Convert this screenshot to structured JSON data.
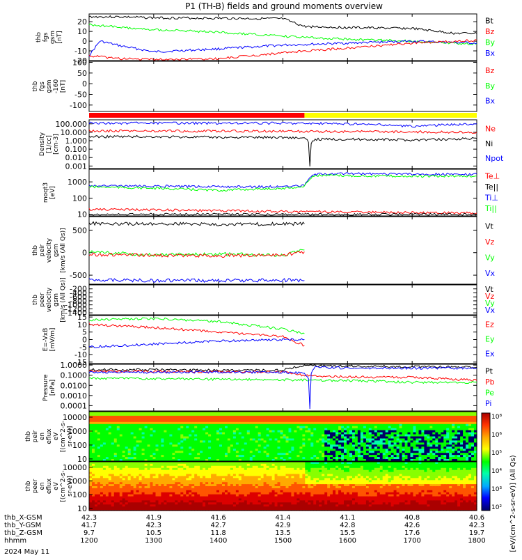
{
  "title": "P1 (TH-B) fields and ground moments overview",
  "date_label": "2024 May 11",
  "colors": {
    "black": "#000000",
    "red": "#ff0000",
    "green": "#00ff00",
    "blue": "#0000ff",
    "yellow": "#ffff00",
    "bar_red": "#ff0000"
  },
  "time_axis": {
    "start_hhmm": "1200",
    "end_hhmm": "1800",
    "ticks": [
      "1200",
      "1300",
      "1400",
      "1500",
      "1600",
      "1700",
      "1800"
    ]
  },
  "ephemeris": {
    "rows": [
      {
        "label": "thb_X-GSM",
        "values": [
          "42.3",
          "41.9",
          "41.6",
          "41.4",
          "41.1",
          "40.8",
          "40.6"
        ]
      },
      {
        "label": "thb_Y-GSM",
        "values": [
          "41.7",
          "42.3",
          "42.7",
          "42.9",
          "42.8",
          "42.6",
          "42.3"
        ]
      },
      {
        "label": "thb_Z-GSM",
        "values": [
          "9.7",
          "10.5",
          "11.8",
          "13.5",
          "15.5",
          "17.6",
          "19.7"
        ]
      },
      {
        "label": "hhmm",
        "values": [
          "1200",
          "1300",
          "1400",
          "1500",
          "1600",
          "1700",
          "1800"
        ]
      }
    ]
  },
  "status_bar": {
    "red_until": "1520",
    "yellow_after": "1520"
  },
  "chart_data": [
    {
      "id": "fgs",
      "type": "line",
      "ylabel": [
        "thb",
        "fgs",
        "gsm",
        "[nT]"
      ],
      "ylim": [
        -20,
        28
      ],
      "yticks": [
        "20",
        "10",
        "0",
        "-10",
        "-20"
      ],
      "legend": [
        "Bt",
        "Bz",
        "By",
        "Bx"
      ],
      "series": [
        {
          "name": "Bt",
          "x": [
            "1200",
            "1230",
            "1300",
            "1400",
            "1500",
            "1520",
            "1600",
            "1700",
            "1740",
            "1800"
          ],
          "values": [
            25,
            25,
            24,
            23.5,
            23,
            15,
            14,
            13,
            8,
            8
          ]
        },
        {
          "name": "By",
          "x": [
            "1200",
            "1230",
            "1300",
            "1400",
            "1500",
            "1600",
            "1700",
            "1800"
          ],
          "values": [
            17,
            14,
            12,
            9,
            5,
            2,
            0,
            -3
          ]
        },
        {
          "name": "Bx",
          "x": [
            "1200",
            "1210",
            "1230",
            "1300",
            "1400",
            "1500",
            "1600",
            "1700",
            "1800"
          ],
          "values": [
            -15,
            0,
            -5,
            -11,
            -8,
            -4,
            -2,
            0,
            -2
          ]
        },
        {
          "name": "Bz",
          "x": [
            "1200",
            "1230",
            "1300",
            "1400",
            "1500",
            "1600",
            "1700",
            "1800"
          ],
          "values": [
            -15,
            -18,
            -19,
            -18,
            -12,
            -7,
            -2,
            1
          ]
        }
      ]
    },
    {
      "id": "fgs-160",
      "type": "line",
      "ylabel": [
        "thb",
        "fgs",
        "gsm",
        "-160",
        "[nT]"
      ],
      "ylim": [
        -130,
        105
      ],
      "yticks": [
        "100",
        "50",
        "0",
        "-50",
        "-100"
      ],
      "legend": [
        "Bz",
        "By",
        "Bx"
      ],
      "series": []
    },
    {
      "id": "density",
      "type": "line",
      "log": true,
      "ylabel": [
        "Density",
        "[1/cc]",
        "[cm-3]"
      ],
      "ylim": [
        0.0005,
        300
      ],
      "yticks": [
        "100.000",
        "10.000",
        "1.000",
        "0.100",
        "0.010",
        "0.001"
      ],
      "legend": [
        "Ne",
        "Ni",
        "Npot"
      ],
      "series": [
        {
          "name": "Npot",
          "x": [
            "1200",
            "1300",
            "1400",
            "1500",
            "1600",
            "1700",
            "1800"
          ],
          "values": [
            120,
            120,
            120,
            120,
            100,
            50,
            100
          ]
        },
        {
          "name": "Ne",
          "x": [
            "1200",
            "1300",
            "1400",
            "1500",
            "1600",
            "1700",
            "1800"
          ],
          "values": [
            15,
            14,
            14,
            13,
            12,
            11,
            10
          ]
        },
        {
          "name": "Ni",
          "x": [
            "1200",
            "1300",
            "1400",
            "1500",
            "1520",
            "1525",
            "1530",
            "1600",
            "1700",
            "1800"
          ],
          "values": [
            3,
            3,
            2.5,
            2.5,
            2,
            0.001,
            1.5,
            1.5,
            1.2,
            1.8
          ]
        }
      ]
    },
    {
      "id": "temperature",
      "type": "line",
      "log": true,
      "ylabel": [
        "moqt3",
        "[eV]"
      ],
      "ylim": [
        8,
        6000
      ],
      "yticks": [
        "1000",
        "100",
        "10"
      ],
      "legend": [
        "Te⊥",
        "Te||",
        "Ti⊥",
        "Ti||"
      ],
      "series": [
        {
          "name": "Te⊥",
          "x": [
            "1200",
            "1300",
            "1400",
            "1500",
            "1600",
            "1700",
            "1800"
          ],
          "values": [
            20,
            19,
            17,
            15,
            14,
            13,
            12
          ]
        },
        {
          "name": "Ti⊥",
          "x": [
            "1200",
            "1300",
            "1400",
            "1500",
            "1520",
            "1530",
            "1600",
            "1700",
            "1800"
          ],
          "values": [
            600,
            550,
            500,
            500,
            600,
            3000,
            3200,
            3000,
            3000
          ]
        },
        {
          "name": "Ti||",
          "x": [
            "1200",
            "1300",
            "1400",
            "1500",
            "1520",
            "1530",
            "1600",
            "1700",
            "1800"
          ],
          "values": [
            500,
            400,
            300,
            400,
            500,
            2500,
            2400,
            2200,
            2300
          ]
        },
        {
          "name": "Te||",
          "x": [
            "1200",
            "1300",
            "1400",
            "1500",
            "1600",
            "1700",
            "1800"
          ],
          "values": [
            10,
            10,
            10,
            10,
            10,
            10,
            10
          ]
        }
      ]
    },
    {
      "id": "peir-velocity",
      "type": "line",
      "ylabel": [
        "thb",
        "peir",
        "velocity",
        "gsm",
        "[km/s (All Qs)]"
      ],
      "ylim": [
        -700,
        800
      ],
      "yticks": [
        "500",
        "0",
        "-500"
      ],
      "legend": [
        "Vt",
        "Vz",
        "Vy",
        "Vx"
      ],
      "series": [
        {
          "name": "Vt",
          "x": [
            "1200",
            "1300",
            "1400",
            "1520"
          ],
          "values": [
            650,
            640,
            630,
            640
          ]
        },
        {
          "name": "Vy",
          "x": [
            "1200",
            "1300",
            "1400",
            "1500",
            "1520"
          ],
          "values": [
            20,
            -50,
            -30,
            -60,
            60
          ]
        },
        {
          "name": "Vz",
          "x": [
            "1200",
            "1300",
            "1400",
            "1500",
            "1520"
          ],
          "values": [
            -40,
            -60,
            -70,
            -50,
            20
          ]
        },
        {
          "name": "Vx",
          "x": [
            "1200",
            "1300",
            "1400",
            "1500",
            "1520"
          ],
          "values": [
            -600,
            -620,
            -620,
            -610,
            -620
          ]
        }
      ]
    },
    {
      "id": "peer-velocity",
      "type": "line",
      "ylabel": [
        "thb",
        "peer",
        "velocity",
        "gsm",
        "[km/s (All Qs)]"
      ],
      "ylim": [
        -1500,
        0
      ],
      "yticks": [
        "-200",
        "-400",
        "-600",
        "-800",
        "-1000",
        "-1200",
        "-1400"
      ],
      "legend": [
        "Vt",
        "Vz",
        "Vy",
        "Vx"
      ],
      "series": []
    },
    {
      "id": "efield",
      "type": "line",
      "ylabel": [
        "E=-VxB",
        "[mV/m]"
      ],
      "ylim": [
        -16,
        16
      ],
      "yticks": [
        "15",
        "10",
        "5",
        "0",
        "-5",
        "-10",
        "-15"
      ],
      "legend": [
        "Ez",
        "Ey",
        "Ex"
      ],
      "series": [
        {
          "name": "Ey",
          "x": [
            "1200",
            "1300",
            "1400",
            "1500",
            "1520"
          ],
          "values": [
            13,
            14,
            12,
            7,
            4
          ]
        },
        {
          "name": "Ez",
          "x": [
            "1200",
            "1300",
            "1400",
            "1500",
            "1520"
          ],
          "values": [
            10,
            8,
            5,
            2,
            -4
          ]
        },
        {
          "name": "Ex",
          "x": [
            "1200",
            "1300",
            "1400",
            "1500",
            "1520"
          ],
          "values": [
            -5,
            -3,
            -1,
            0,
            0
          ]
        }
      ]
    },
    {
      "id": "pressure",
      "type": "line",
      "log": true,
      "ylabel": [
        "Pressure",
        "[nPa]"
      ],
      "ylim": [
        3e-05,
        1.2
      ],
      "yticks": [
        "1.0000",
        "0.1000",
        "0.0100",
        "0.0010",
        "0.0001"
      ],
      "legend": [
        "Pt",
        "Pb",
        "Pe",
        "Pi"
      ],
      "series": [
        {
          "name": "Pt",
          "x": [
            "1200",
            "1300",
            "1400",
            "1500",
            "1520",
            "1600",
            "1700",
            "1800"
          ],
          "values": [
            0.35,
            0.35,
            0.3,
            0.3,
            0.9,
            0.8,
            0.7,
            0.6
          ]
        },
        {
          "name": "Pb",
          "x": [
            "1200",
            "1300",
            "1400",
            "1500",
            "1520",
            "1600",
            "1700",
            "1800"
          ],
          "values": [
            0.25,
            0.25,
            0.22,
            0.2,
            0.09,
            0.07,
            0.06,
            0.03
          ]
        },
        {
          "name": "Pe",
          "x": [
            "1200",
            "1300",
            "1400",
            "1500",
            "1600",
            "1700",
            "1800"
          ],
          "values": [
            0.05,
            0.045,
            0.04,
            0.035,
            0.03,
            0.02,
            0.02
          ]
        },
        {
          "name": "Pi",
          "x": [
            "1200",
            "1300",
            "1400",
            "1500",
            "1520",
            "1525",
            "1530",
            "1600",
            "1700",
            "1800"
          ],
          "values": [
            0.2,
            0.2,
            0.2,
            0.2,
            0.15,
            5e-05,
            0.6,
            0.5,
            0.5,
            0.5
          ]
        }
      ]
    },
    {
      "id": "peir-spectrogram",
      "type": "heatmap",
      "ylabel": [
        "thb",
        "peir",
        "en",
        "eflux",
        "eV",
        "[(cm^2-s-",
        "sr-eV)]"
      ],
      "yticks": [
        "10000",
        "1000",
        "100",
        "10"
      ],
      "colorbar": "10^2 .. 10^8"
    },
    {
      "id": "peer-spectrogram",
      "type": "heatmap",
      "ylabel": [
        "thb",
        "peer",
        "en",
        "eflux",
        "eV",
        "[(cm^2-s-",
        "sr-eV)]"
      ],
      "yticks": [
        "10000",
        "1000",
        "100",
        "10"
      ]
    }
  ],
  "colorbar": {
    "ticks": [
      "10⁸",
      "10⁶",
      "10⁵",
      "10⁴",
      "10³",
      "10²"
    ],
    "label": "[eV/(cm^2-s-sr-eV)] (All Qs)"
  }
}
